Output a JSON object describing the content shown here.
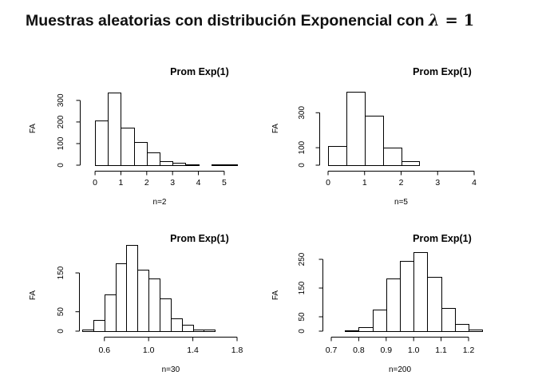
{
  "page": {
    "title_text": "Muestras aleatorias con distribución Exponencial con ",
    "title_symbol": "λ",
    "title_eq": " = ",
    "title_value": "1"
  },
  "chart_data": [
    {
      "type": "bar",
      "title": "Prom Exp(1)",
      "xlabel": "n=2",
      "ylabel": "FA",
      "xlim": [
        -0.25,
        5.25
      ],
      "ylim": [
        0,
        340
      ],
      "xticks": [
        0,
        1,
        2,
        3,
        4,
        5
      ],
      "xtick_labels": [
        "0",
        "1",
        "2",
        "3",
        "4",
        "5"
      ],
      "yticks": [
        0,
        100,
        200,
        300
      ],
      "ytick_labels": [
        "0",
        "100",
        "200",
        "300"
      ],
      "bin_edges": [
        0,
        0.5,
        1,
        1.5,
        2,
        2.5,
        3,
        3.5,
        4,
        4.5,
        5,
        5.5
      ],
      "values": [
        208,
        338,
        173,
        109,
        60,
        18,
        11,
        3,
        0,
        3,
        5
      ]
    },
    {
      "type": "bar",
      "title": "Prom Exp(1)",
      "xlabel": "n=5",
      "ylabel": "FA",
      "xlim": [
        0,
        4
      ],
      "ylim": [
        0,
        420
      ],
      "xticks": [
        0,
        1,
        2,
        3,
        4
      ],
      "xtick_labels": [
        "0",
        "1",
        "2",
        "3",
        "4"
      ],
      "yticks": [
        0,
        100,
        300
      ],
      "ytick_labels": [
        "0",
        "100",
        "300"
      ],
      "bin_edges": [
        0,
        0.5,
        1,
        1.5,
        2,
        2.5,
        3,
        3.5,
        4
      ],
      "values": [
        108,
        418,
        285,
        100,
        25,
        2,
        1,
        1
      ]
    },
    {
      "type": "bar",
      "title": "Prom Exp(1)",
      "xlabel": "n=30",
      "ylabel": "FA",
      "xlim": [
        0.45,
        1.8
      ],
      "ylim": [
        0,
        185
      ],
      "xticks": [
        0.6,
        1.0,
        1.4,
        1.8
      ],
      "xtick_labels": [
        "0.6",
        "1.0",
        "1.4",
        "1.8"
      ],
      "yticks": [
        0,
        50,
        150
      ],
      "ytick_labels": [
        "0",
        "50",
        "150"
      ],
      "bin_edges": [
        0.4,
        0.5,
        0.6,
        0.7,
        0.8,
        0.9,
        1.0,
        1.1,
        1.2,
        1.3,
        1.4,
        1.5,
        1.6,
        1.7
      ],
      "values": [
        5,
        28,
        95,
        175,
        222,
        158,
        135,
        85,
        32,
        17,
        4,
        5,
        0
      ]
    },
    {
      "type": "bar",
      "title": "Prom Exp(1)",
      "xlabel": "n=200",
      "ylabel": "FA",
      "xlim": [
        0.7,
        1.2
      ],
      "ylim": [
        0,
        250
      ],
      "xticks": [
        0.7,
        0.8,
        0.9,
        1.0,
        1.1,
        1.2
      ],
      "xtick_labels": [
        "0.7",
        "0.8",
        "0.9",
        "1.0",
        "1.1",
        "1.2"
      ],
      "yticks": [
        0,
        50,
        150,
        250
      ],
      "ytick_labels": [
        "0",
        "50",
        "150",
        "250"
      ],
      "bin_edges": [
        0.65,
        0.7,
        0.75,
        0.8,
        0.85,
        0.9,
        0.95,
        1.0,
        1.05,
        1.1,
        1.15,
        1.2,
        1.25
      ],
      "values": [
        0,
        0,
        2,
        15,
        75,
        182,
        245,
        275,
        190,
        80,
        25,
        5
      ]
    }
  ]
}
